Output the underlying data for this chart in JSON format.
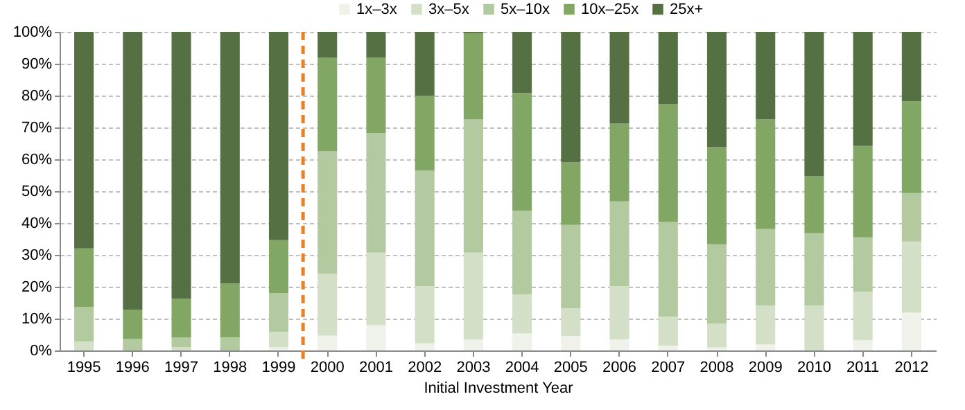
{
  "chart_data": {
    "type": "bar",
    "stacked": true,
    "xlabel": "Initial Investment Year",
    "categories": [
      "1995",
      "1996",
      "1997",
      "1998",
      "1999",
      "2000",
      "2001",
      "2002",
      "2003",
      "2004",
      "2005",
      "2006",
      "2007",
      "2008",
      "2009",
      "2010",
      "2011",
      "2012"
    ],
    "series": [
      {
        "name": "1x–3x",
        "color": "#eef2ea",
        "values": [
          0,
          0,
          0,
          0,
          1.0,
          4.7,
          8.0,
          2.3,
          3.5,
          5.4,
          4.5,
          3.5,
          1.5,
          1.0,
          1.9,
          0,
          3.2,
          11.9
        ]
      },
      {
        "name": "3x–5x",
        "color": "#d3dfc6",
        "values": [
          2.8,
          null,
          1.0,
          null,
          4.8,
          19.4,
          22.7,
          17.9,
          27.2,
          12.2,
          8.7,
          16.7,
          9.1,
          7.4,
          12.2,
          14.1,
          15.3,
          22.3
        ]
      },
      {
        "name": "5x–10x",
        "color": "#b3c99f",
        "values": [
          10.9,
          3.6,
          3.1,
          4.1,
          12.2,
          38.4,
          37.5,
          36.2,
          41.8,
          26.2,
          26.2,
          26.6,
          29.7,
          24.9,
          24.0,
          22.7,
          17.0,
          15.2
        ]
      },
      {
        "name": "10x–25x",
        "color": "#82a765",
        "values": [
          18.3,
          9.2,
          12.2,
          17.0,
          16.6,
          29.4,
          23.7,
          23.5,
          27.1,
          37.0,
          19.6,
          24.4,
          37.0,
          30.5,
          34.4,
          17.9,
          28.7,
          28.8
        ]
      },
      {
        "name": "25x+",
        "color": "#557042",
        "values": [
          68.0,
          87.2,
          83.7,
          78.9,
          65.4,
          8.1,
          8.1,
          20.1,
          0.4,
          19.2,
          41.0,
          28.8,
          22.7,
          36.2,
          27.5,
          45.3,
          35.8,
          21.8
        ]
      }
    ],
    "ylim": [
      0,
      100
    ],
    "yticks": [
      {
        "value": 0,
        "label": "0%"
      },
      {
        "value": 10,
        "label": "10%"
      },
      {
        "value": 20,
        "label": "20%"
      },
      {
        "value": 30,
        "label": "30%"
      },
      {
        "value": 40,
        "label": "40%"
      },
      {
        "value": 50,
        "label": "50%"
      },
      {
        "value": 60,
        "label": "60%"
      },
      {
        "value": 70,
        "label": "70%"
      },
      {
        "value": 80,
        "label": "80%"
      },
      {
        "value": 90,
        "label": "90%"
      },
      {
        "value": 100,
        "label": "100%"
      }
    ],
    "grid": "y",
    "legend": "top right",
    "ref_lines": [
      {
        "axis": "x",
        "value": "2000",
        "color": "#f07f22",
        "line_style": "dashed"
      }
    ]
  }
}
